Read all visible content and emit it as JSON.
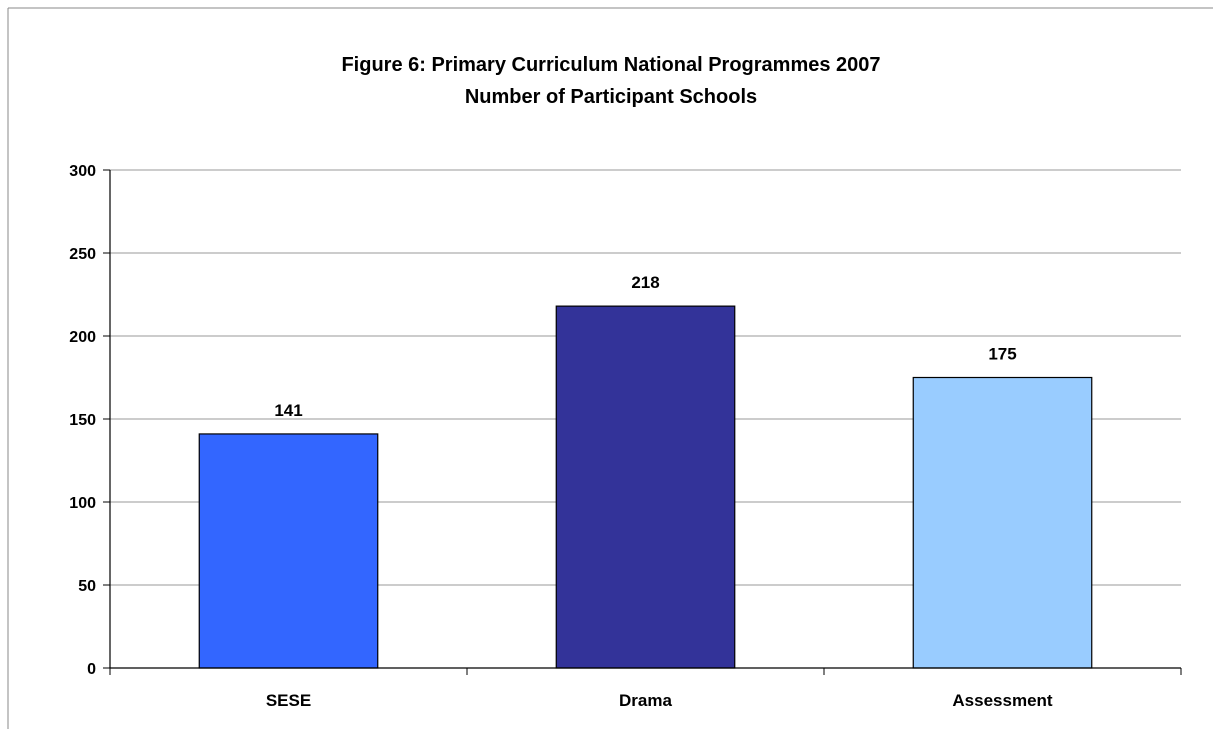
{
  "chart_data": {
    "type": "bar",
    "title": "Figure 6: Primary Curriculum National Programmes 2007",
    "subtitle": "Number of Participant Schools",
    "xlabel": "",
    "ylabel": "",
    "categories": [
      "SESE",
      "Drama",
      "Assessment"
    ],
    "values": [
      141,
      218,
      175
    ],
    "data_labels": [
      "141",
      "218",
      "175"
    ],
    "bar_colors": [
      "#3366ff",
      "#333399",
      "#99ccff"
    ],
    "ylim": [
      0,
      300
    ],
    "yticks": [
      0,
      50,
      100,
      150,
      200,
      250,
      300
    ],
    "ytick_labels": [
      "0",
      "50",
      "100",
      "150",
      "200",
      "250",
      "300"
    ],
    "grid": true,
    "legend": "none"
  },
  "colors": {
    "gridline": "#999999",
    "axis": "#000000",
    "bar_outline": "#000000",
    "frame": "#888888"
  }
}
